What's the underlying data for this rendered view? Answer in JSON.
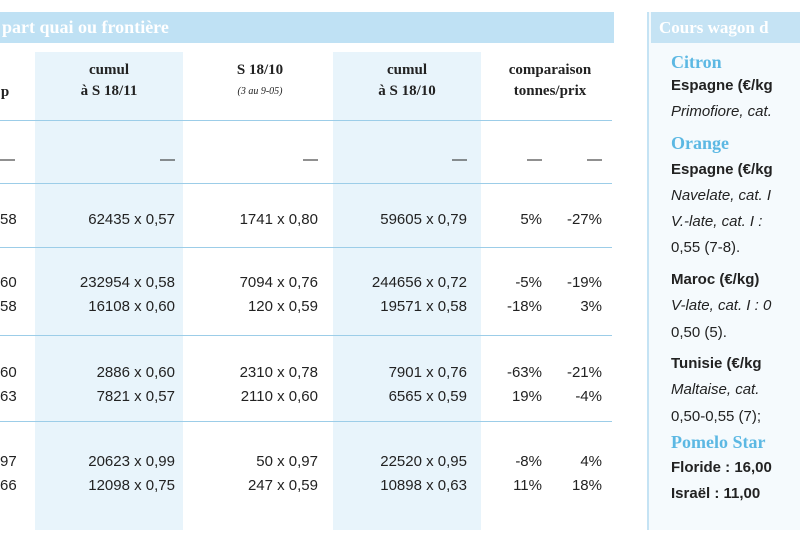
{
  "header": {
    "title": "part quai ou frontière"
  },
  "columns": {
    "c1": {
      "line1": "cumul",
      "line2": "à S 18/11"
    },
    "c2": {
      "line1": "S 18/10",
      "line2": "(3 au 9-05)"
    },
    "c3": {
      "line1": "cumul",
      "line2": "à S 18/10"
    },
    "c4": {
      "line1": "comparaison",
      "line2": "tonnes/prix"
    }
  },
  "leading_fragment": {
    "header": "p"
  },
  "dash_row": {
    "c1": "—",
    "c2": "—",
    "c3": "—",
    "c4a": "—",
    "c4b": "—",
    "c0": "—"
  },
  "rows": [
    {
      "c0": "58",
      "c1": "62435 x 0,57",
      "c2": "1741 x 0,80",
      "c3": "59605 x 0,79",
      "pct1": "5%",
      "pct2": "-27%"
    },
    {
      "c0": "60",
      "c1": "232954 x 0,58",
      "c2": "7094 x 0,76",
      "c3": "244656 x 0,72",
      "pct1": "-5%",
      "pct2": "-19%"
    },
    {
      "c0": "58",
      "c1": "16108 x 0,60",
      "c2": "120 x 0,59",
      "c3": "19571 x 0,58",
      "pct1": "-18%",
      "pct2": "3%"
    },
    {
      "c0": "60",
      "c1": "2886 x 0,60",
      "c2": "2310 x 0,78",
      "c3": "7901 x 0,76",
      "pct1": "-63%",
      "pct2": "-21%"
    },
    {
      "c0": "63",
      "c1": "7821 x 0,57",
      "c2": "2110 x 0,60",
      "c3": "6565 x 0,59",
      "pct1": "19%",
      "pct2": "-4%"
    },
    {
      "c0": "97",
      "c1": "20623 x 0,99",
      "c2": "50 x 0,97",
      "c3": "22520 x 0,95",
      "pct1": "-8%",
      "pct2": "4%"
    },
    {
      "c0": "66",
      "c1": "12098 x 0,75",
      "c2": "247 x 0,59",
      "c3": "10898 x 0,63",
      "pct1": "11%",
      "pct2": "18%"
    }
  ],
  "sidebar": {
    "title": "Cours wagon d",
    "lines": [
      {
        "kind": "fruit",
        "text": "Citron"
      },
      {
        "kind": "country",
        "text": "Espagne (€/kg"
      },
      {
        "kind": "italic",
        "text": "Primofiore, cat."
      },
      {
        "kind": "fruit",
        "text": "Orange"
      },
      {
        "kind": "country",
        "text": "Espagne (€/kg"
      },
      {
        "kind": "italic",
        "text": "Navelate, cat. I"
      },
      {
        "kind": "italic",
        "text": "V.-late, cat. I :"
      },
      {
        "kind": "plain",
        "text": "0,55 (7-8)."
      },
      {
        "kind": "country",
        "text": "Maroc (€/kg)"
      },
      {
        "kind": "italic",
        "text": "V-late, cat. I : 0"
      },
      {
        "kind": "plain",
        "text": "0,50 (5)."
      },
      {
        "kind": "country",
        "text": "Tunisie (€/kg"
      },
      {
        "kind": "italic",
        "text": "Maltaise, cat."
      },
      {
        "kind": "plain",
        "text": "0,50-0,55 (7);"
      },
      {
        "kind": "fruit",
        "text": "Pomelo Star"
      },
      {
        "kind": "country",
        "text": "Floride : 16,00"
      },
      {
        "kind": "country",
        "text": "Israël : 11,00"
      }
    ]
  }
}
